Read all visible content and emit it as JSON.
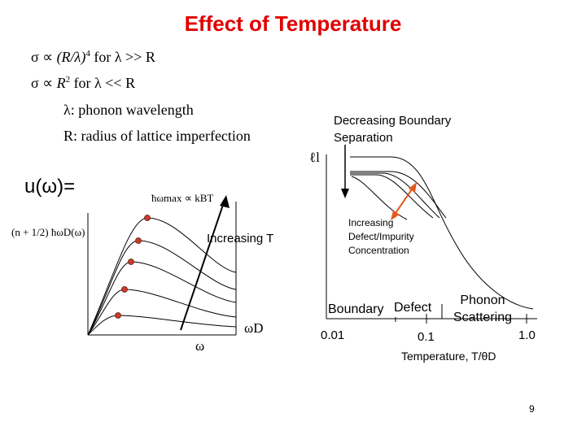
{
  "title": "Effect of Temperature",
  "formulas": {
    "line1": {
      "sym": "σ ∝ ",
      "a": "(R/λ)",
      "sup": "4",
      "b": " for λ >> R"
    },
    "line2": {
      "sym": "σ ∝ ",
      "a": "R",
      "sup": "2",
      "b": " for λ << R"
    },
    "lambda_def": "λ: phonon wavelength",
    "r_def": "R: radius of lattice imperfection"
  },
  "left_plot": {
    "u_label": "u(ω)=",
    "occupation": "(n + 1/2) ħωD(ω)",
    "omega_max": "ħωmax ∝ kBT",
    "increasing_t": "Increasing T",
    "x_axis_label": "ω",
    "omega_d": "ωD",
    "curve_count": 5
  },
  "right_plot": {
    "decreasing_label": "Decreasing Boundary Separation",
    "y_label": "ℓl",
    "increasing_defect": "Increasing Defect/Impurity Concentration",
    "regions": {
      "boundary": "Boundary",
      "defect": "Defect",
      "phonon": "Phonon Scattering"
    },
    "x_ticks": [
      "0.01",
      "0.1",
      "1.0"
    ],
    "x_label": "Temperature, T/θD"
  },
  "colors": {
    "accent": "#e00000",
    "marker": "#cc3a2a",
    "arrow": "#e35a1c"
  },
  "page_number": "9"
}
